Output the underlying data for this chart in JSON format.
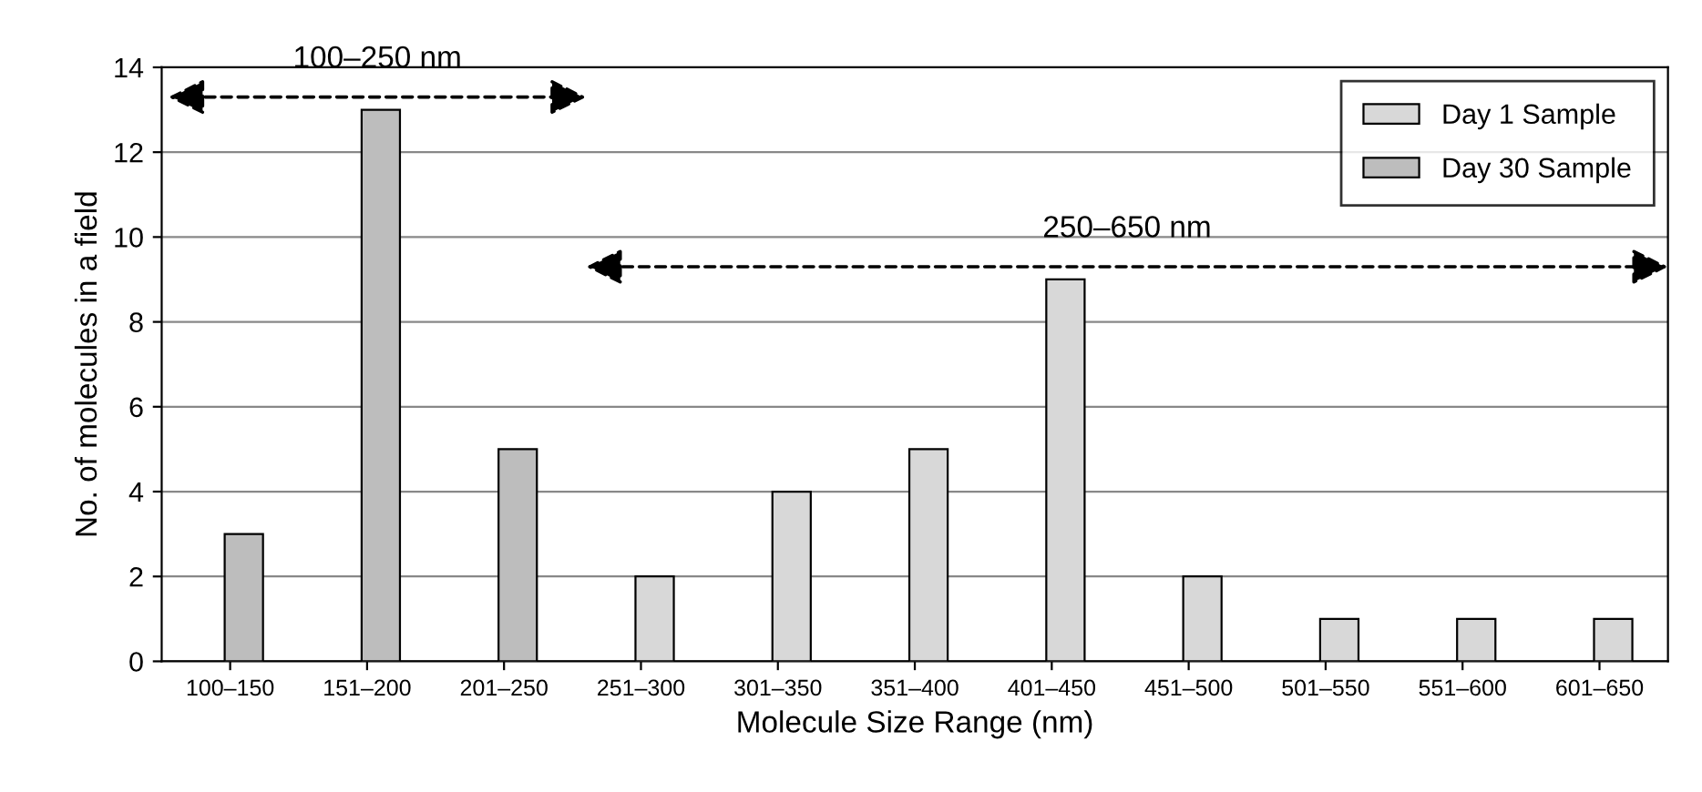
{
  "chart_data": {
    "type": "bar",
    "xlabel": "Molecule Size Range (nm)",
    "ylabel": "No. of molecules in a field",
    "categories": [
      "100–150",
      "151–200",
      "201–250",
      "251–300",
      "301–350",
      "351–400",
      "401–450",
      "451–500",
      "501–550",
      "551–600",
      "601–650"
    ],
    "series": [
      {
        "name": "Day 1 Sample",
        "color": "#d8d8d8",
        "values": [
          null,
          null,
          null,
          2,
          4,
          5,
          9,
          2,
          1,
          1,
          1
        ]
      },
      {
        "name": "Day 30 Sample",
        "color": "#bdbdbd",
        "values": [
          3,
          13,
          5,
          null,
          null,
          null,
          null,
          null,
          null,
          null,
          null
        ]
      }
    ],
    "ylim": [
      0,
      14
    ],
    "yticks": [
      0,
      2,
      4,
      6,
      8,
      10,
      12,
      14
    ],
    "grid": "y",
    "legend": "top right",
    "annotations": [
      "100–250 nm",
      "250–650 nm"
    ]
  }
}
